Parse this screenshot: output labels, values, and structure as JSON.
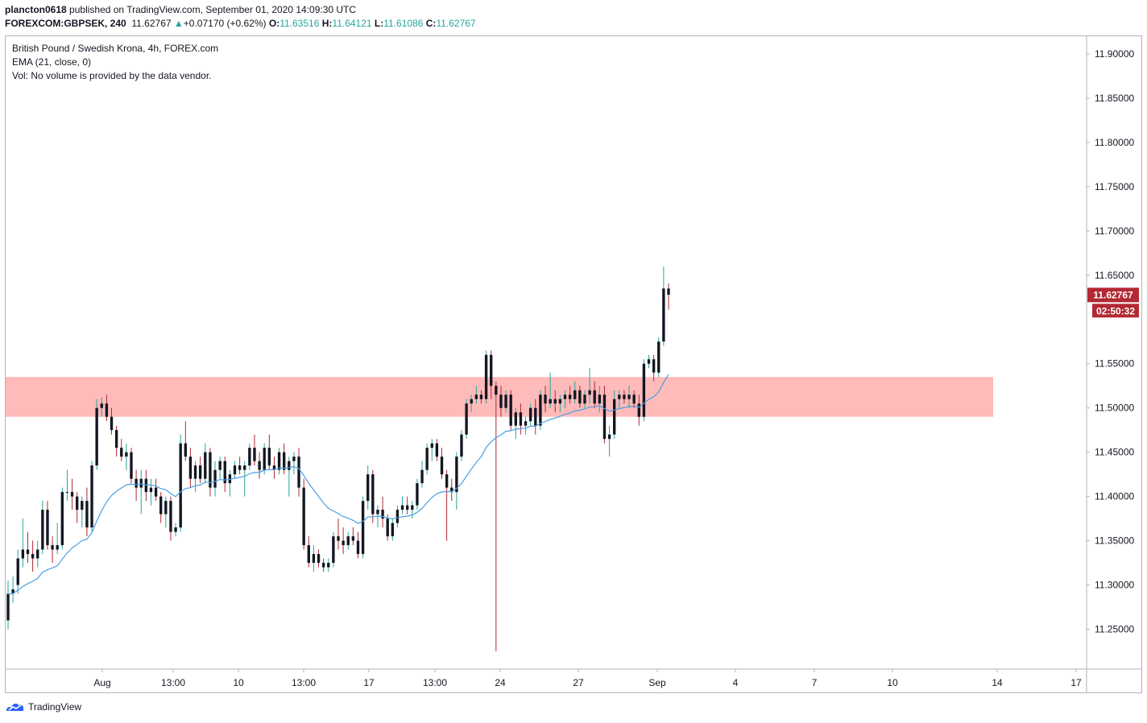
{
  "header": {
    "publisher": "plancton0618",
    "published_text": "published on TradingView.com, September 01, 2020 14:09:30 UTC",
    "symbol": "FOREXCOM:GBPSEK, 240",
    "last": "11.62767",
    "change_arrow": "▲",
    "change": "+0.07170 (+0.62%)",
    "o_label": "O:",
    "o_value": "11.63516",
    "h_label": "H:",
    "h_value": "11.64121",
    "l_label": "L:",
    "l_value": "11.61086",
    "c_label": "C:",
    "c_value": "11.62767"
  },
  "legend": {
    "title": "British Pound / Swedish Krona, 4h, FOREX.com",
    "ema": "EMA (21, close, 0)",
    "volume": "Vol: No volume is provided by the data vendor."
  },
  "footer": {
    "brand": "TradingView",
    "brand_icon": "tradingview-logo-icon"
  },
  "colors": {
    "up_candle": "#131722",
    "down_candle": "#131722",
    "up_wick": "#26a69a",
    "down_wick": "#b22833",
    "ema": "#4a9fe3",
    "zone": "#ffb3b3",
    "price_label_bg": "#b22833",
    "axis_text": "#131722",
    "frame": "#b2b5be"
  },
  "chart_data": {
    "type": "candlestick",
    "y_ticks": [
      "11.90000",
      "11.85000",
      "11.80000",
      "11.75000",
      "11.70000",
      "11.65000",
      "11.55000",
      "11.50000",
      "11.45000",
      "11.40000",
      "11.35000",
      "11.30000",
      "11.25000"
    ],
    "y_range": [
      11.205,
      11.92
    ],
    "x_ticks": [
      "Aug",
      "13:00",
      "10",
      "13:00",
      "17",
      "13:00",
      "24",
      "27",
      "Sep",
      "4",
      "7",
      "10",
      "14",
      "17"
    ],
    "price_label": "11.62767",
    "countdown_label": "02:50:32",
    "zone": {
      "from": 11.49,
      "to": 11.535
    },
    "candles": [
      [
        11.26,
        11.305,
        11.25,
        11.29
      ],
      [
        11.29,
        11.31,
        11.28,
        11.295
      ],
      [
        11.3,
        11.34,
        11.29,
        11.33
      ],
      [
        11.33,
        11.375,
        11.32,
        11.34
      ],
      [
        11.34,
        11.36,
        11.325,
        11.335
      ],
      [
        11.335,
        11.35,
        11.315,
        11.33
      ],
      [
        11.33,
        11.35,
        11.32,
        11.34
      ],
      [
        11.34,
        11.395,
        11.335,
        11.385
      ],
      [
        11.385,
        11.395,
        11.34,
        11.345
      ],
      [
        11.345,
        11.355,
        11.325,
        11.34
      ],
      [
        11.34,
        11.37,
        11.335,
        11.345
      ],
      [
        11.345,
        11.41,
        11.34,
        11.405
      ],
      [
        11.405,
        11.43,
        11.395,
        11.405
      ],
      [
        11.405,
        11.42,
        11.385,
        11.4
      ],
      [
        11.4,
        11.405,
        11.37,
        11.385
      ],
      [
        11.385,
        11.4,
        11.365,
        11.395
      ],
      [
        11.395,
        11.41,
        11.355,
        11.365
      ],
      [
        11.365,
        11.44,
        11.36,
        11.435
      ],
      [
        11.435,
        11.51,
        11.43,
        11.5
      ],
      [
        11.5,
        11.512,
        11.49,
        11.505
      ],
      [
        11.505,
        11.515,
        11.485,
        11.49
      ],
      [
        11.49,
        11.5,
        11.47,
        11.475
      ],
      [
        11.475,
        11.48,
        11.445,
        11.455
      ],
      [
        11.455,
        11.465,
        11.44,
        11.445
      ],
      [
        11.445,
        11.46,
        11.43,
        11.45
      ],
      [
        11.45,
        11.455,
        11.415,
        11.42
      ],
      [
        11.42,
        11.43,
        11.395,
        11.41
      ],
      [
        11.41,
        11.43,
        11.38,
        11.42
      ],
      [
        11.42,
        11.43,
        11.395,
        11.405
      ],
      [
        11.405,
        11.42,
        11.39,
        11.41
      ],
      [
        11.41,
        11.42,
        11.395,
        11.4
      ],
      [
        11.4,
        11.405,
        11.37,
        11.38
      ],
      [
        11.38,
        11.4,
        11.365,
        11.395
      ],
      [
        11.395,
        11.4,
        11.35,
        11.36
      ],
      [
        11.36,
        11.37,
        11.355,
        11.365
      ],
      [
        11.365,
        11.47,
        11.36,
        11.46
      ],
      [
        11.46,
        11.485,
        11.44,
        11.445
      ],
      [
        11.445,
        11.455,
        11.41,
        11.42
      ],
      [
        11.42,
        11.44,
        11.405,
        11.435
      ],
      [
        11.435,
        11.445,
        11.415,
        11.42
      ],
      [
        11.42,
        11.46,
        11.415,
        11.45
      ],
      [
        11.45,
        11.455,
        11.4,
        11.41
      ],
      [
        11.41,
        11.44,
        11.4,
        11.43
      ],
      [
        11.43,
        11.445,
        11.42,
        11.44
      ],
      [
        11.44,
        11.445,
        11.405,
        11.415
      ],
      [
        11.415,
        11.43,
        11.4,
        11.425
      ],
      [
        11.425,
        11.44,
        11.42,
        11.435
      ],
      [
        11.435,
        11.445,
        11.425,
        11.43
      ],
      [
        11.43,
        11.44,
        11.4,
        11.435
      ],
      [
        11.435,
        11.46,
        11.43,
        11.455
      ],
      [
        11.455,
        11.47,
        11.435,
        11.44
      ],
      [
        11.44,
        11.45,
        11.42,
        11.43
      ],
      [
        11.43,
        11.46,
        11.425,
        11.455
      ],
      [
        11.455,
        11.47,
        11.43,
        11.435
      ],
      [
        11.435,
        11.445,
        11.42,
        11.43
      ],
      [
        11.43,
        11.455,
        11.425,
        11.45
      ],
      [
        11.45,
        11.46,
        11.425,
        11.43
      ],
      [
        11.43,
        11.445,
        11.4,
        11.44
      ],
      [
        11.44,
        11.45,
        11.425,
        11.445
      ],
      [
        11.445,
        11.455,
        11.4,
        11.41
      ],
      [
        11.41,
        11.42,
        11.34,
        11.345
      ],
      [
        11.345,
        11.355,
        11.32,
        11.325
      ],
      [
        11.325,
        11.345,
        11.315,
        11.335
      ],
      [
        11.335,
        11.34,
        11.32,
        11.325
      ],
      [
        11.325,
        11.33,
        11.315,
        11.32
      ],
      [
        11.32,
        11.33,
        11.315,
        11.325
      ],
      [
        11.325,
        11.36,
        11.32,
        11.355
      ],
      [
        11.355,
        11.375,
        11.34,
        11.35
      ],
      [
        11.35,
        11.365,
        11.335,
        11.345
      ],
      [
        11.345,
        11.36,
        11.34,
        11.355
      ],
      [
        11.355,
        11.365,
        11.345,
        11.35
      ],
      [
        11.35,
        11.36,
        11.33,
        11.335
      ],
      [
        11.335,
        11.4,
        11.33,
        11.395
      ],
      [
        11.395,
        11.435,
        11.385,
        11.425
      ],
      [
        11.425,
        11.43,
        11.37,
        11.38
      ],
      [
        11.38,
        11.39,
        11.365,
        11.385
      ],
      [
        11.385,
        11.4,
        11.365,
        11.375
      ],
      [
        11.375,
        11.38,
        11.35,
        11.355
      ],
      [
        11.355,
        11.375,
        11.35,
        11.37
      ],
      [
        11.37,
        11.39,
        11.365,
        11.385
      ],
      [
        11.385,
        11.4,
        11.38,
        11.39
      ],
      [
        11.39,
        11.4,
        11.38,
        11.385
      ],
      [
        11.385,
        11.395,
        11.375,
        11.39
      ],
      [
        11.39,
        11.42,
        11.385,
        11.415
      ],
      [
        11.415,
        11.44,
        11.41,
        11.43
      ],
      [
        11.43,
        11.46,
        11.425,
        11.455
      ],
      [
        11.455,
        11.465,
        11.44,
        11.46
      ],
      [
        11.46,
        11.465,
        11.44,
        11.445
      ],
      [
        11.445,
        11.455,
        11.42,
        11.425
      ],
      [
        11.425,
        11.43,
        11.35,
        11.41
      ],
      [
        11.41,
        11.42,
        11.395,
        11.405
      ],
      [
        11.405,
        11.45,
        11.385,
        11.445
      ],
      [
        11.445,
        11.475,
        11.44,
        11.47
      ],
      [
        11.47,
        11.51,
        11.465,
        11.505
      ],
      [
        11.505,
        11.515,
        11.495,
        11.51
      ],
      [
        11.51,
        11.525,
        11.505,
        11.515
      ],
      [
        11.515,
        11.52,
        11.505,
        11.51
      ],
      [
        11.51,
        11.565,
        11.505,
        11.56
      ],
      [
        11.56,
        11.565,
        11.51,
        11.525
      ],
      [
        11.525,
        11.53,
        11.225,
        11.515
      ],
      [
        11.515,
        11.525,
        11.49,
        11.5
      ],
      [
        11.5,
        11.52,
        11.495,
        11.515
      ],
      [
        11.515,
        11.52,
        11.475,
        11.48
      ],
      [
        11.48,
        11.5,
        11.465,
        11.495
      ],
      [
        11.495,
        11.505,
        11.47,
        11.48
      ],
      [
        11.48,
        11.49,
        11.47,
        11.485
      ],
      [
        11.485,
        11.505,
        11.48,
        11.5
      ],
      [
        11.5,
        11.51,
        11.47,
        11.48
      ],
      [
        11.48,
        11.52,
        11.475,
        11.515
      ],
      [
        11.515,
        11.525,
        11.495,
        11.505
      ],
      [
        11.505,
        11.54,
        11.5,
        11.51
      ],
      [
        11.51,
        11.52,
        11.495,
        11.505
      ],
      [
        11.505,
        11.515,
        11.495,
        11.51
      ],
      [
        11.51,
        11.52,
        11.5,
        11.515
      ],
      [
        11.515,
        11.525,
        11.505,
        11.51
      ],
      [
        11.51,
        11.53,
        11.505,
        11.52
      ],
      [
        11.52,
        11.525,
        11.5,
        11.505
      ],
      [
        11.505,
        11.52,
        11.5,
        11.515
      ],
      [
        11.515,
        11.545,
        11.505,
        11.52
      ],
      [
        11.52,
        11.53,
        11.5,
        11.505
      ],
      [
        11.505,
        11.525,
        11.495,
        11.515
      ],
      [
        11.515,
        11.525,
        11.46,
        11.465
      ],
      [
        11.465,
        11.48,
        11.445,
        11.47
      ],
      [
        11.47,
        11.52,
        11.465,
        11.51
      ],
      [
        11.51,
        11.52,
        11.5,
        11.515
      ],
      [
        11.515,
        11.52,
        11.505,
        11.51
      ],
      [
        11.51,
        11.525,
        11.5,
        11.515
      ],
      [
        11.515,
        11.52,
        11.5,
        11.505
      ],
      [
        11.505,
        11.515,
        11.48,
        11.49
      ],
      [
        11.49,
        11.555,
        11.485,
        11.55
      ],
      [
        11.55,
        11.56,
        11.545,
        11.555
      ],
      [
        11.555,
        11.56,
        11.53,
        11.54
      ],
      [
        11.54,
        11.58,
        11.535,
        11.575
      ],
      [
        11.575,
        11.66,
        11.57,
        11.635
      ],
      [
        11.635,
        11.641,
        11.611,
        11.628
      ]
    ],
    "ema_period": 21
  }
}
